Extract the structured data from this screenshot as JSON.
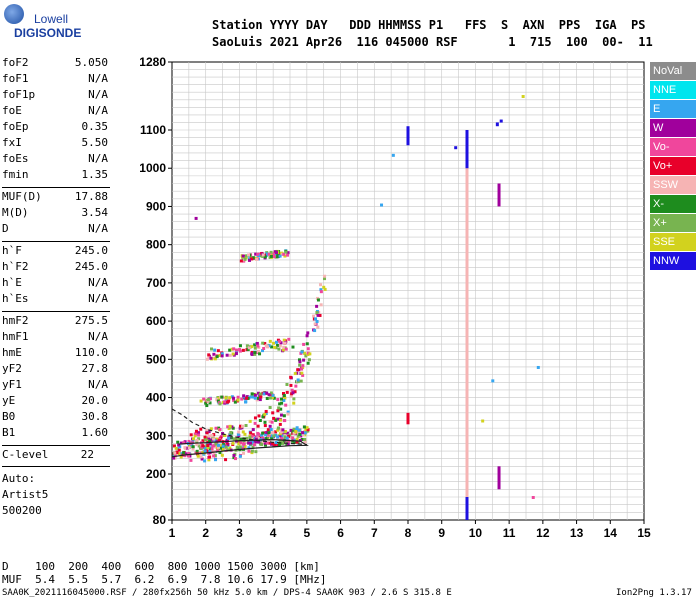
{
  "logo": {
    "top": "Lowell",
    "bottom": "DIGISONDE"
  },
  "header": {
    "line1": "Station YYYY DAY   DDD HHMMSS P1   FFS  S  AXN  PPS  IGA  PS",
    "line2": "SaoLuis 2021 Apr26  116 045000 RSF       1  715  100  00-  11"
  },
  "sidebar": {
    "group1": [
      {
        "label": "foF2",
        "value": "5.050"
      },
      {
        "label": "foF1",
        "value": "N/A"
      },
      {
        "label": "foF1p",
        "value": "N/A"
      },
      {
        "label": "foE",
        "value": "N/A"
      },
      {
        "label": "foEp",
        "value": "0.35"
      },
      {
        "label": "fxI",
        "value": "5.50"
      },
      {
        "label": "foEs",
        "value": "N/A"
      },
      {
        "label": "fmin",
        "value": "1.35"
      }
    ],
    "group2": [
      {
        "label": "MUF(D)",
        "value": "17.88"
      },
      {
        "label": "M(D)",
        "value": "3.54"
      },
      {
        "label": "D",
        "value": "N/A"
      }
    ],
    "group3": [
      {
        "label": "h`F",
        "value": "245.0"
      },
      {
        "label": "h`F2",
        "value": "245.0"
      },
      {
        "label": "h`E",
        "value": "N/A"
      },
      {
        "label": "h`Es",
        "value": "N/A"
      }
    ],
    "group4": [
      {
        "label": "hmF2",
        "value": "275.5"
      },
      {
        "label": "hmF1",
        "value": "N/A"
      },
      {
        "label": "hmE",
        "value": "110.0"
      },
      {
        "label": "yF2",
        "value": "27.8"
      },
      {
        "label": "yF1",
        "value": "N/A"
      },
      {
        "label": "yE",
        "value": "20.0"
      },
      {
        "label": "B0",
        "value": "30.8"
      },
      {
        "label": "B1",
        "value": "1.60"
      }
    ],
    "clevel": {
      "label": "C-level",
      "value": "22"
    },
    "auto": [
      "Auto:",
      "Artist5",
      "500200"
    ]
  },
  "legend": [
    {
      "label": "NoVal",
      "color": "#8c8c8c"
    },
    {
      "label": "NNE",
      "color": "#00e5ee"
    },
    {
      "label": "E",
      "color": "#36a6f0"
    },
    {
      "label": "W",
      "color": "#a0009c"
    },
    {
      "label": "Vo-",
      "color": "#f0469c"
    },
    {
      "label": "Vo+",
      "color": "#e8002a"
    },
    {
      "label": "SSW",
      "color": "#f6b4b4"
    },
    {
      "label": "X-",
      "color": "#1e8c1e"
    },
    {
      "label": "X+",
      "color": "#78b450"
    },
    {
      "label": "SSE",
      "color": "#d2d21e"
    },
    {
      "label": "NNW",
      "color": "#1e10e0"
    }
  ],
  "bottom": {
    "d_line": "D    100  200  400  600  800 1000 1500 3000 [km]",
    "muf_line": "MUF  5.4  5.5  5.7  6.2  6.9  7.8 10.6 17.9 [MHz]"
  },
  "footer": {
    "left": "SAA0K_2021116045000.RSF / 280fx256h 50 kHz 5.0 km / DPS-4 SAA0K 903 / 2.6 S 315.8 E",
    "right": "Ion2Png 1.3.17"
  },
  "chart_data": {
    "type": "scatter",
    "xlabel": "",
    "ylabel": "",
    "xlim": [
      1,
      15
    ],
    "ylim": [
      80,
      1280
    ],
    "x_ticks": [
      "1",
      "2",
      "3",
      "4",
      "5",
      "6",
      "7",
      "8",
      "9",
      "10",
      "11",
      "12",
      "13",
      "14",
      "15"
    ],
    "y_ticks": [
      "1280",
      "1100",
      "1000",
      "900",
      "800",
      "700",
      "600",
      "500",
      "400",
      "300",
      "200",
      "80"
    ],
    "grid": true,
    "traces": [
      {
        "name": "F2 profile",
        "color": "#222222",
        "points": [
          [
            1.0,
            245
          ],
          [
            1.4,
            250
          ],
          [
            2.0,
            255
          ],
          [
            2.5,
            260
          ],
          [
            3.0,
            264
          ],
          [
            3.5,
            268
          ],
          [
            4.0,
            271
          ],
          [
            4.5,
            274
          ],
          [
            5.0,
            275
          ],
          [
            4.8,
            286
          ],
          [
            4.0,
            290
          ],
          [
            3.0,
            287
          ],
          [
            2.0,
            282
          ],
          [
            1.5,
            280
          ],
          [
            1.2,
            278
          ]
        ]
      },
      {
        "name": "F2 dashed",
        "color": "#222222",
        "points": [
          [
            1.0,
            370
          ],
          [
            1.3,
            355
          ],
          [
            1.6,
            335
          ],
          [
            2.0,
            318
          ],
          [
            2.5,
            305
          ],
          [
            3.0,
            295
          ],
          [
            3.5,
            288
          ],
          [
            4.0,
            283
          ],
          [
            4.5,
            280
          ],
          [
            5.0,
            277
          ]
        ]
      }
    ],
    "echo_bands": [
      {
        "name": "F trace o",
        "x_range": [
          1.0,
          5.0
        ],
        "h_start": 245,
        "h_end": 330
      },
      {
        "name": "F trace x",
        "x_range": [
          1.5,
          5.5
        ],
        "h_start": 265,
        "h_end": 700
      },
      {
        "name": "2F multiple",
        "x_range": [
          2.0,
          4.6
        ],
        "h_start": 500,
        "h_end": 560
      },
      {
        "name": "3F multiple",
        "x_range": [
          3.0,
          4.4
        ],
        "h_start": 760,
        "h_end": 790
      },
      {
        "name": "Spread",
        "x_range": [
          1.8,
          4.0
        ],
        "h_start": 380,
        "h_end": 420
      }
    ],
    "vertical_lines": [
      {
        "x": 8.0,
        "h_from": 1060,
        "h_to": 1110,
        "color": "#1e10e0"
      },
      {
        "x": 8.0,
        "h_from": 330,
        "h_to": 360,
        "color": "#e8002a"
      },
      {
        "x": 9.75,
        "h_from": 80,
        "h_to": 1100,
        "color": "#1e10e0"
      },
      {
        "x": 9.75,
        "h_from": 140,
        "h_to": 1000,
        "color": "#f6b4b4"
      },
      {
        "x": 10.7,
        "h_from": 160,
        "h_to": 220,
        "color": "#a0009c"
      },
      {
        "x": 10.7,
        "h_from": 900,
        "h_to": 960,
        "color": "#a0009c"
      },
      {
        "x": 10.65,
        "h_from": 1110,
        "h_to": 1120,
        "color": "#1e10e0"
      }
    ],
    "isolated_points": [
      {
        "x": 7.2,
        "h": 905,
        "color": "#36a6f0"
      },
      {
        "x": 7.55,
        "h": 1035,
        "color": "#36a6f0"
      },
      {
        "x": 9.4,
        "h": 1055,
        "color": "#1e10e0"
      },
      {
        "x": 10.5,
        "h": 445,
        "color": "#36a6f0"
      },
      {
        "x": 10.75,
        "h": 1125,
        "color": "#1e10e0"
      },
      {
        "x": 11.4,
        "h": 1190,
        "color": "#d2d21e"
      },
      {
        "x": 11.85,
        "h": 480,
        "color": "#36a6f0"
      },
      {
        "x": 11.7,
        "h": 140,
        "color": "#f0469c"
      },
      {
        "x": 10.2,
        "h": 340,
        "color": "#d2d21e"
      },
      {
        "x": 1.7,
        "h": 870,
        "color": "#a0009c"
      }
    ]
  }
}
